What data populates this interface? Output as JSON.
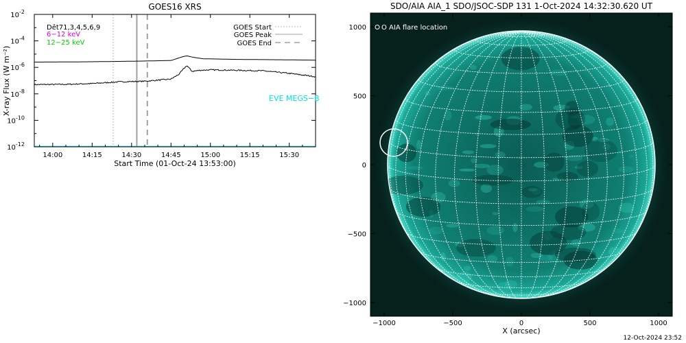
{
  "chart_data": [
    {
      "type": "line",
      "title": "GOES16 XRS",
      "xlabel": "Start Time (01-Oct-24 13:53:00)",
      "ylabel": "X-ray Flux (W m⁻²)",
      "y_scale": "log",
      "xlim": [
        "13:53",
        "15:40"
      ],
      "ylim": [
        1e-12,
        0.01
      ],
      "x_ticks": [
        "14:00",
        "14:15",
        "14:30",
        "14:45",
        "15:00",
        "15:15",
        "15:30"
      ],
      "y_ticks": [
        {
          "value": 1e-12,
          "base": "10",
          "exp": "-12"
        },
        {
          "value": 1e-10,
          "base": "10",
          "exp": "-10"
        },
        {
          "value": 1e-08,
          "base": "10",
          "exp": "-8"
        },
        {
          "value": 1e-06,
          "base": "10",
          "exp": "-6"
        },
        {
          "value": 0.0001,
          "base": "10",
          "exp": "-4"
        },
        {
          "value": 0.01,
          "base": "10",
          "exp": "-2"
        }
      ],
      "legend_left": [
        {
          "label": "Dêt71,3,4,5,6,9",
          "color": "#000000"
        },
        {
          "label": "6−12 keV",
          "color": "#e000e0"
        },
        {
          "label": "12−25 keV",
          "color": "#00d000"
        }
      ],
      "legend_right": [
        {
          "label": "GOES Start",
          "style": "dotted",
          "color": "#a0a0a0"
        },
        {
          "label": "GOES Peak",
          "style": "solid",
          "color": "#a0a0a0"
        },
        {
          "label": "GOES End",
          "style": "dashed",
          "color": "#a0a0a0"
        }
      ],
      "annotation": {
        "text": "EVE MEGS−B",
        "color": "#00e0e0"
      },
      "event_lines": {
        "start": "14:23",
        "peak": "14:32",
        "end": "14:36"
      },
      "series": [
        {
          "band": "long",
          "color": "#000000",
          "x": [
            "13:53",
            "14:10",
            "14:30",
            "14:45",
            "14:49",
            "14:51",
            "14:53",
            "14:57",
            "15:10",
            "15:30",
            "15:40"
          ],
          "y": [
            2.5e-06,
            2.6e-06,
            2.9e-06,
            3.3e-06,
            6e-06,
            7.5e-06,
            6e-06,
            4.5e-06,
            4e-06,
            3.7e-06,
            3.5e-06
          ]
        },
        {
          "band": "short",
          "color": "#000000",
          "x": [
            "13:53",
            "14:05",
            "14:15",
            "14:25",
            "14:35",
            "14:45",
            "14:48",
            "14:51",
            "14:53",
            "14:56",
            "15:00",
            "15:10",
            "15:20",
            "15:30",
            "15:40"
          ],
          "y": [
            5e-08,
            5.2e-08,
            6e-08,
            8e-08,
            9e-08,
            1.3e-07,
            3e-07,
            1.4e-06,
            5e-07,
            6e-07,
            6.5e-07,
            6e-07,
            5.5e-07,
            3.5e-07,
            2e-07
          ]
        },
        {
          "band": "EVE MEGS−B",
          "color": "#00e0e0",
          "x": [
            "13:53",
            "15:40"
          ],
          "y": [
            1e-12,
            1e-12
          ]
        }
      ]
    },
    {
      "type": "image",
      "title": "SDO/AIA AIA_1 SDO/JSOC-SDP 131  1-Oct-2024 14:32:30.620 UT",
      "xlabel": "X (arcsec)",
      "ylabel": "",
      "xlim": [
        -1100,
        1100
      ],
      "ylim": [
        -1100,
        1100
      ],
      "x_ticks": [
        "−1000",
        "−500",
        "0",
        "500",
        "1000"
      ],
      "y_ticks": [
        "1000",
        "500",
        "0",
        "−500",
        "−1000"
      ],
      "legend": "O AIA flare location",
      "flare_location": {
        "x": -930,
        "y": 160
      },
      "solar_radius": 975,
      "b0_deg": 7,
      "grid_step_deg": 10,
      "colors": {
        "background": "#06201c",
        "disk": "#0f8f80",
        "limb": "#40d0c0",
        "grid": "#ffffff"
      }
    }
  ],
  "footer": {
    "timestamp": "12-Oct-2024 23:52"
  }
}
